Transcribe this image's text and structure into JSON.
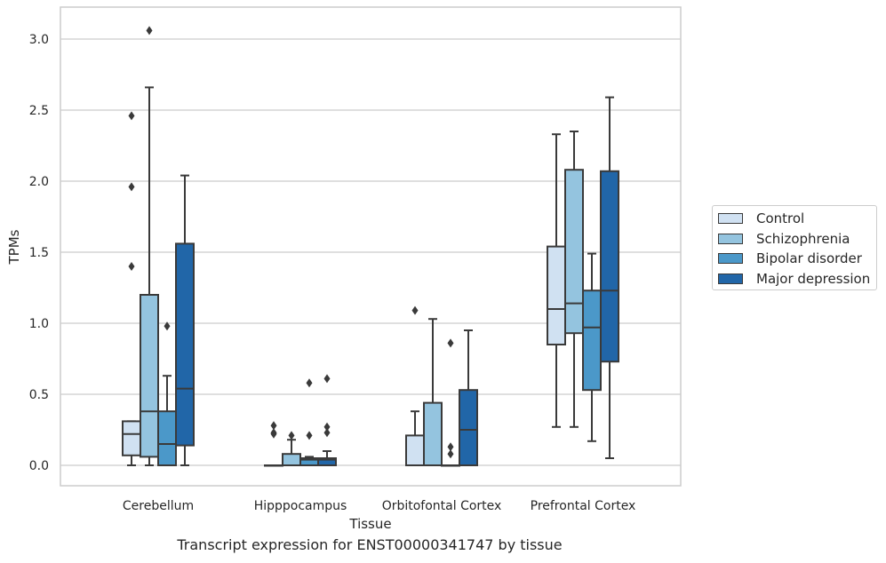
{
  "chart_data": {
    "type": "box",
    "xlabel": "Tissue",
    "ylabel": "TPMs",
    "ylim": [
      -0.15,
      3.22
    ],
    "yticks": [
      "0.0",
      "0.5",
      "1.0",
      "1.5",
      "2.0",
      "2.5",
      "3.0"
    ],
    "ytick_values": [
      0.0,
      0.5,
      1.0,
      1.5,
      2.0,
      2.5,
      3.0
    ],
    "grid": "horizontal",
    "legend_position": "right",
    "categories": [
      "Cerebellum",
      "Hipppocampus",
      "Orbitofontal Cortex",
      "Prefrontal Cortex"
    ],
    "series": [
      {
        "name": "Control",
        "color": "#d0e1f2",
        "boxes": [
          {
            "whislo": 0.0,
            "q1": 0.07,
            "med": 0.22,
            "q3": 0.31,
            "whishi": 0.31,
            "fliers": []
          },
          {
            "whislo": 0.0,
            "q1": 0.0,
            "med": 0.0,
            "q3": 0.0,
            "whishi": 0.0,
            "fliers": []
          },
          {
            "whislo": 0.0,
            "q1": 0.0,
            "med": 0.0,
            "q3": 0.21,
            "whishi": 0.38,
            "fliers": []
          },
          {
            "whislo": 0.27,
            "q1": 0.85,
            "med": 1.1,
            "q3": 1.54,
            "whishi": 2.33,
            "fliers": []
          }
        ]
      },
      {
        "name": "Schizophrenia",
        "color": "#94c4df",
        "boxes": [
          {
            "whislo": 0.0,
            "q1": 0.06,
            "med": 0.38,
            "q3": 1.2,
            "whishi": 2.66,
            "fliers": [
              3.06
            ]
          },
          {
            "whislo": 0.0,
            "q1": 0.0,
            "med": 0.0,
            "q3": 0.08,
            "whishi": 0.18,
            "fliers": [
              0.21
            ]
          },
          {
            "whislo": 0.0,
            "q1": 0.0,
            "med": 0.0,
            "q3": 0.44,
            "whishi": 1.03,
            "fliers": []
          },
          {
            "whislo": 0.27,
            "q1": 0.93,
            "med": 1.14,
            "q3": 2.08,
            "whishi": 2.35,
            "fliers": []
          }
        ]
      },
      {
        "name": "Bipolar disorder",
        "color": "#4b98c9",
        "boxes": [
          {
            "whislo": 0.0,
            "q1": 0.0,
            "med": 0.15,
            "q3": 0.38,
            "whishi": 0.63,
            "fliers": [
              0.98
            ]
          },
          {
            "whislo": 0.0,
            "q1": 0.0,
            "med": 0.04,
            "q3": 0.05,
            "whishi": 0.06,
            "fliers": [
              0.21,
              0.58
            ]
          },
          {
            "whislo": 0.0,
            "q1": 0.0,
            "med": 0.0,
            "q3": 0.0,
            "whishi": 0.0,
            "fliers": [
              0.08,
              0.13,
              0.86
            ]
          },
          {
            "whislo": 0.17,
            "q1": 0.53,
            "med": 0.97,
            "q3": 1.23,
            "whishi": 1.49,
            "fliers": []
          }
        ]
      },
      {
        "name": "Major depression",
        "color": "#2166a8",
        "boxes": [
          {
            "whislo": 0.0,
            "q1": 0.14,
            "med": 0.54,
            "q3": 1.56,
            "whishi": 2.04,
            "fliers": []
          },
          {
            "whislo": 0.0,
            "q1": 0.0,
            "med": 0.04,
            "q3": 0.05,
            "whishi": 0.1,
            "fliers": [
              0.23,
              0.27,
              0.61
            ]
          },
          {
            "whislo": 0.0,
            "q1": 0.0,
            "med": 0.25,
            "q3": 0.53,
            "whishi": 0.95,
            "fliers": []
          },
          {
            "whislo": 0.05,
            "q1": 0.73,
            "med": 1.23,
            "q3": 2.07,
            "whishi": 2.59,
            "fliers": []
          }
        ]
      }
    ],
    "control_fliers": [
      [
        1.4,
        1.96,
        2.46
      ],
      [
        0.22,
        0.23,
        0.28
      ],
      [
        1.09
      ],
      []
    ]
  },
  "caption": "Transcript expression for ENST00000341747 by tissue"
}
